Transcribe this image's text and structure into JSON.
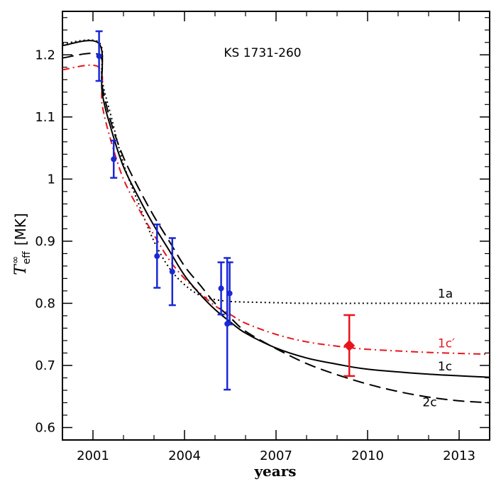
{
  "chart_data": {
    "type": "line",
    "title": "KS 1731-260",
    "xlabel": "years",
    "ylabel": {
      "symbol": "T",
      "subscript": "eff",
      "superscript": "∞",
      "unit": "[MK]"
    },
    "xlim": [
      2000,
      2014
    ],
    "ylim": [
      0.58,
      1.27
    ],
    "x_ticks": [
      2001,
      2004,
      2007,
      2010,
      2013
    ],
    "y_ticks": [
      0.6,
      0.7,
      0.8,
      0.9,
      1,
      1.1,
      1.2
    ],
    "y_tick_labels": [
      "0.6",
      "0.7",
      "0.8",
      "0.9",
      "1",
      "1.1",
      "1.2"
    ],
    "series": [
      {
        "name": "1a",
        "style": "dotted",
        "color": "#000000",
        "x": [
          2000,
          2001.2,
          2001.3,
          2001.6,
          2002,
          2002.5,
          2003,
          2003.5,
          2004,
          2004.5,
          2005,
          2005.5,
          2006,
          2007,
          2008,
          2010,
          2012,
          2014
        ],
        "y": [
          1.218,
          1.22,
          1.16,
          1.1,
          1.025,
          0.96,
          0.9,
          0.857,
          0.83,
          0.813,
          0.806,
          0.803,
          0.802,
          0.801,
          0.8,
          0.8,
          0.8,
          0.8
        ]
      },
      {
        "name": "1c′",
        "style": "dash-dot",
        "color": "#e8141c",
        "x": [
          2000,
          2001.2,
          2001.3,
          2001.6,
          2002,
          2002.5,
          2003,
          2003.5,
          2004,
          2004.5,
          2005,
          2005.5,
          2006,
          2007,
          2008,
          2009,
          2010,
          2012,
          2014
        ],
        "y": [
          1.176,
          1.18,
          1.12,
          1.06,
          1.0,
          0.952,
          0.91,
          0.87,
          0.84,
          0.817,
          0.796,
          0.782,
          0.768,
          0.75,
          0.738,
          0.731,
          0.726,
          0.721,
          0.718
        ]
      },
      {
        "name": "1c",
        "style": "solid",
        "color": "#000000",
        "x": [
          2000,
          2001.2,
          2001.3,
          2001.6,
          2002,
          2002.5,
          2003,
          2003.5,
          2004,
          2004.5,
          2005,
          2005.5,
          2006,
          2007,
          2008,
          2009,
          2010,
          2012,
          2014
        ],
        "y": [
          1.215,
          1.218,
          1.14,
          1.08,
          1.02,
          0.97,
          0.925,
          0.885,
          0.845,
          0.815,
          0.79,
          0.77,
          0.752,
          0.728,
          0.712,
          0.702,
          0.694,
          0.686,
          0.681
        ]
      },
      {
        "name": "2c",
        "style": "dashed",
        "color": "#000000",
        "x": [
          2000,
          2001.2,
          2001.3,
          2001.6,
          2002,
          2002.5,
          2003,
          2003.5,
          2004,
          2004.5,
          2005,
          2005.5,
          2006,
          2007,
          2008,
          2009,
          2010,
          2011,
          2012,
          2013,
          2014
        ],
        "y": [
          1.195,
          1.2,
          1.15,
          1.09,
          1.035,
          0.985,
          0.94,
          0.9,
          0.86,
          0.83,
          0.8,
          0.777,
          0.755,
          0.727,
          0.703,
          0.685,
          0.67,
          0.658,
          0.649,
          0.643,
          0.64
        ]
      }
    ],
    "curve_labels": [
      {
        "text": "1a",
        "x": 2012.3,
        "y": 0.8,
        "color": "#000000"
      },
      {
        "text": "1c′",
        "x": 2012.3,
        "y": 0.72,
        "color": "#e8141c"
      },
      {
        "text": "1c",
        "x": 2012.3,
        "y": 0.683,
        "color": "#000000"
      },
      {
        "text": "2c",
        "x": 2011.8,
        "y": 0.625,
        "color": "#000000"
      }
    ],
    "observations": [
      {
        "color": "#1a28d6",
        "marker": "circle",
        "points": [
          {
            "x": 2001.2,
            "y": 1.198,
            "lo": 1.158,
            "hi": 1.238
          },
          {
            "x": 2001.68,
            "y": 1.032,
            "lo": 1.002,
            "hi": 1.062
          },
          {
            "x": 2003.1,
            "y": 0.876,
            "lo": 0.825,
            "hi": 0.927
          },
          {
            "x": 2003.6,
            "y": 0.851,
            "lo": 0.797,
            "hi": 0.905
          },
          {
            "x": 2005.2,
            "y": 0.824,
            "lo": 0.782,
            "hi": 0.866
          },
          {
            "x": 2005.4,
            "y": 0.767,
            "lo": 0.661,
            "hi": 0.873
          },
          {
            "x": 2005.48,
            "y": 0.816,
            "lo": 0.766,
            "hi": 0.866
          }
        ]
      },
      {
        "color": "#e8141c",
        "marker": "diamond",
        "points": [
          {
            "x": 2009.4,
            "y": 0.732,
            "lo": 0.683,
            "hi": 0.781
          }
        ]
      }
    ],
    "grid": false,
    "legend": "none"
  }
}
